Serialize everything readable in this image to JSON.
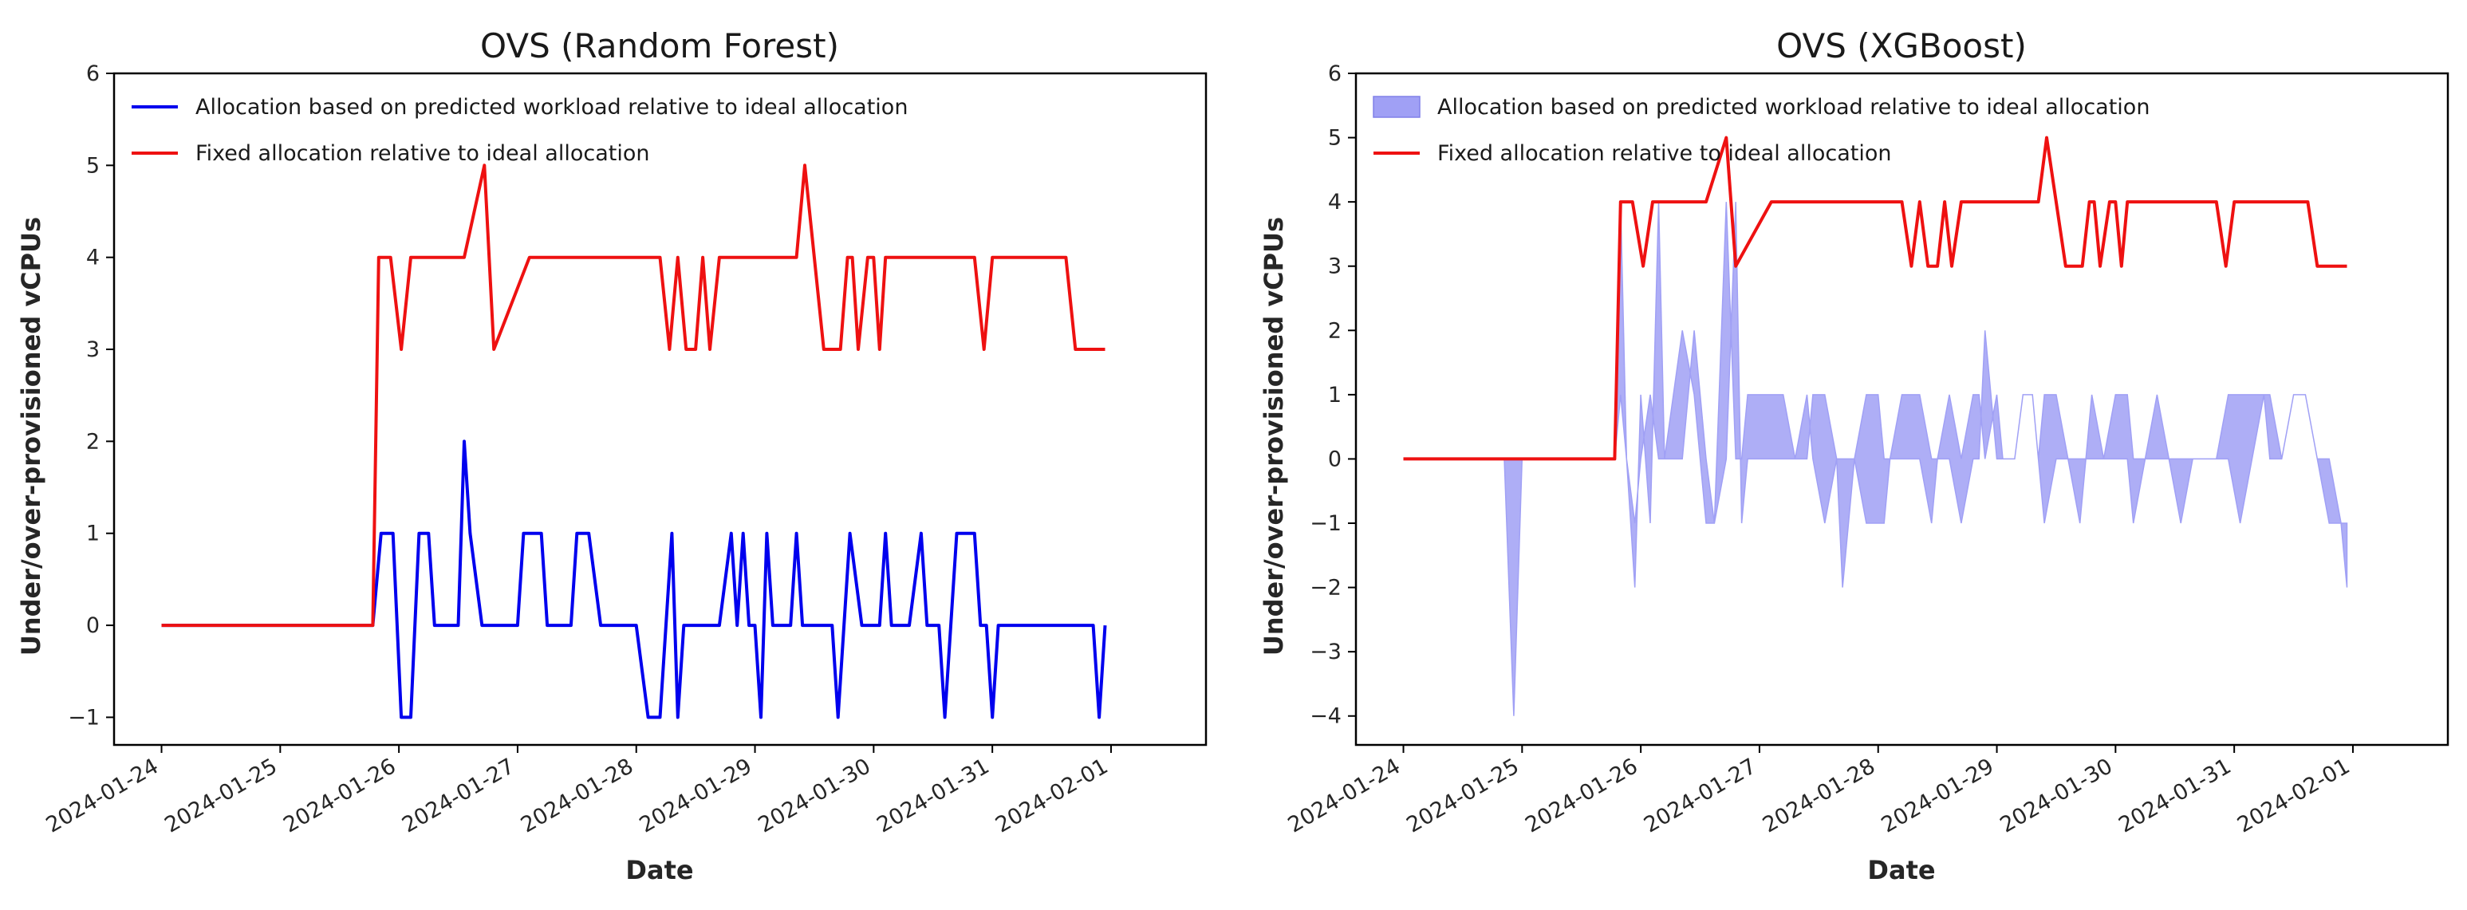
{
  "chart_data": [
    {
      "type": "line",
      "title": "OVS (Random Forest)",
      "xlabel": "Date",
      "ylabel": "Under/over-provisioned vCPUs",
      "ylim": [
        -1.3,
        6
      ],
      "yticks": [
        "−1",
        "0",
        "1",
        "2",
        "3",
        "4",
        "5",
        "6"
      ],
      "ytick_values": [
        -1,
        0,
        1,
        2,
        3,
        4,
        5,
        6
      ],
      "xlim_days": [
        -0.4,
        8.8
      ],
      "xticks": [
        "2024-01-24",
        "2024-01-25",
        "2024-01-26",
        "2024-01-27",
        "2024-01-28",
        "2024-01-29",
        "2024-01-30",
        "2024-01-31",
        "2024-02-01"
      ],
      "legend": [
        {
          "label": "Allocation based on predicted workload relative to ideal allocation",
          "style": "line",
          "color": "#0000ee"
        },
        {
          "label": "Fixed allocation relative to ideal allocation",
          "style": "line",
          "color": "#ee1111"
        }
      ],
      "series": [
        {
          "name": "Allocation based on predicted workload relative to ideal allocation",
          "color": "#0000ee",
          "x": [
            0,
            1.78,
            1.85,
            1.95,
            2.02,
            2.1,
            2.17,
            2.25,
            2.3,
            2.35,
            2.5,
            2.55,
            2.6,
            2.7,
            2.8,
            2.85,
            2.9,
            3.0,
            3.05,
            3.1,
            3.2,
            3.25,
            3.3,
            3.4,
            3.45,
            3.5,
            3.6,
            3.7,
            3.8,
            3.85,
            3.9,
            4.0,
            4.1,
            4.2,
            4.3,
            4.35,
            4.4,
            4.45,
            4.5,
            4.6,
            4.7,
            4.8,
            4.85,
            4.9,
            4.95,
            5.0,
            5.05,
            5.1,
            5.15,
            5.2,
            5.3,
            5.35,
            5.4,
            5.5,
            5.6,
            5.65,
            5.7,
            5.8,
            5.9,
            6.0,
            6.05,
            6.1,
            6.15,
            6.2,
            6.3,
            6.4,
            6.45,
            6.5,
            6.55,
            6.6,
            6.7,
            6.8,
            6.85,
            6.9,
            6.95,
            7.0,
            7.05,
            7.1,
            7.2,
            7.3,
            7.35,
            7.4,
            7.45,
            7.5,
            7.55,
            7.6,
            7.7,
            7.8,
            7.85,
            7.9,
            7.95
          ],
          "y": [
            0,
            0,
            1,
            1,
            -1,
            -1,
            1,
            1,
            0,
            0,
            0,
            2,
            1,
            0,
            0,
            0,
            0,
            0,
            1,
            1,
            1,
            0,
            0,
            0,
            0,
            1,
            1,
            0,
            0,
            0,
            0,
            0,
            -1,
            -1,
            1,
            -1,
            0,
            0,
            0,
            0,
            0,
            1,
            0,
            1,
            0,
            0,
            -1,
            1,
            0,
            0,
            0,
            1,
            0,
            0,
            0,
            0,
            -1,
            1,
            0,
            0,
            0,
            1,
            0,
            0,
            0,
            1,
            0,
            0,
            0,
            -1,
            1,
            1,
            1,
            0,
            0,
            -1,
            0,
            0,
            0,
            0,
            0,
            0,
            0,
            0,
            0,
            0,
            0,
            0,
            0,
            -1,
            0
          ]
        },
        {
          "name": "Fixed allocation relative to ideal allocation",
          "color": "#ee1111",
          "x": [
            0,
            1.78,
            1.83,
            1.93,
            2.02,
            2.1,
            2.15,
            2.4,
            2.55,
            2.72,
            2.8,
            3.1,
            4.2,
            4.28,
            4.35,
            4.42,
            4.5,
            4.56,
            4.62,
            4.7,
            4.8,
            5.02,
            5.12,
            5.2,
            5.3,
            5.35,
            5.42,
            5.58,
            5.65,
            5.72,
            5.78,
            5.82,
            5.87,
            5.95,
            6.0,
            6.05,
            6.1,
            6.2,
            6.3,
            6.4,
            6.85,
            6.93,
            7.0,
            7.1,
            7.2,
            7.28,
            7.35,
            7.42,
            7.5,
            7.62,
            7.7,
            7.8,
            7.85,
            7.95
          ],
          "y": [
            0,
            0,
            4,
            4,
            3,
            4,
            4,
            4,
            4,
            5,
            3,
            4,
            4,
            3,
            4,
            3,
            3,
            4,
            3,
            4,
            4,
            4,
            4,
            4,
            4,
            4,
            5,
            3,
            3,
            3,
            4,
            4,
            3,
            4,
            4,
            3,
            4,
            4,
            4,
            4,
            4,
            3,
            4,
            4,
            4,
            4,
            4,
            4,
            4,
            4,
            3,
            3,
            3,
            3
          ]
        }
      ]
    },
    {
      "type": "line",
      "title": "OVS (XGBoost)",
      "xlabel": "Date",
      "ylabel": "Under/over-provisioned vCPUs",
      "ylim": [
        -4.45,
        6
      ],
      "yticks": [
        "−4",
        "−3",
        "−2",
        "−1",
        "0",
        "1",
        "2",
        "3",
        "4",
        "5",
        "6"
      ],
      "ytick_values": [
        -4,
        -3,
        -2,
        -1,
        0,
        1,
        2,
        3,
        4,
        5,
        6
      ],
      "xlim_days": [
        -0.4,
        8.8
      ],
      "xticks": [
        "2024-01-24",
        "2024-01-25",
        "2024-01-26",
        "2024-01-27",
        "2024-01-28",
        "2024-01-29",
        "2024-01-30",
        "2024-01-31",
        "2024-02-01"
      ],
      "legend": [
        {
          "label": "Allocation based on predicted workload relative to ideal allocation",
          "style": "patch",
          "color": "#a0a0f5"
        },
        {
          "label": "Fixed allocation relative to ideal allocation",
          "style": "line",
          "color": "#ee1111"
        }
      ],
      "series": [
        {
          "name": "Allocation based on predicted workload relative to ideal allocation",
          "style": "band",
          "color": "#a0a0f5",
          "x": [
            0,
            0.85,
            0.93,
            1.0,
            1.78,
            1.83,
            1.88,
            1.95,
            2.0,
            2.08,
            2.15,
            2.2,
            2.35,
            2.45,
            2.55,
            2.62,
            2.72,
            2.8,
            2.85,
            2.9,
            3.0,
            3.05,
            3.2,
            3.3,
            3.4,
            3.45,
            3.55,
            3.65,
            3.7,
            3.8,
            3.9,
            4.0,
            4.05,
            4.1,
            4.2,
            4.3,
            4.35,
            4.45,
            4.5,
            4.6,
            4.7,
            4.8,
            4.85,
            4.9,
            5.0,
            5.05,
            5.15,
            5.22,
            5.3,
            5.35,
            5.4,
            5.5,
            5.6,
            5.7,
            5.8,
            5.9,
            6.0,
            6.1,
            6.15,
            6.25,
            6.35,
            6.45,
            6.55,
            6.65,
            6.75,
            6.85,
            6.95,
            7.05,
            7.15,
            7.25,
            7.3,
            7.4,
            7.5,
            7.6,
            7.7,
            7.8,
            7.9,
            7.95
          ],
          "y1": [
            0,
            0,
            0,
            0,
            0,
            1,
            0,
            -1,
            0,
            1,
            0,
            0,
            2,
            1,
            -1,
            -1,
            4,
            0,
            0,
            1,
            1,
            1,
            1,
            0,
            0,
            1,
            1,
            0,
            0,
            0,
            1,
            1,
            0,
            0,
            1,
            1,
            1,
            0,
            0,
            1,
            0,
            1,
            1,
            0,
            1,
            0,
            0,
            1,
            1,
            0,
            1,
            1,
            0,
            0,
            0,
            0,
            1,
            1,
            0,
            0,
            1,
            0,
            0,
            0,
            0,
            0,
            1,
            1,
            1,
            1,
            0,
            0,
            1,
            1,
            0,
            0,
            -1,
            -1
          ],
          "y2": [
            0,
            0,
            -4,
            0,
            0,
            4,
            0,
            -2,
            1,
            -1,
            4,
            0,
            0,
            2,
            0,
            -1,
            0,
            4,
            -1,
            0,
            0,
            0,
            0,
            0,
            1,
            0,
            -1,
            0,
            -2,
            0,
            -1,
            -1,
            -1,
            0,
            0,
            0,
            0,
            -1,
            0,
            0,
            -1,
            0,
            0,
            2,
            0,
            0,
            0,
            1,
            1,
            0,
            -1,
            0,
            0,
            -1,
            1,
            0,
            0,
            0,
            -1,
            0,
            0,
            0,
            -1,
            0,
            0,
            0,
            0,
            -1,
            0,
            1,
            1,
            0,
            1,
            1,
            0,
            -1,
            -1,
            -2
          ]
        },
        {
          "name": "Fixed allocation relative to ideal allocation",
          "color": "#ee1111",
          "x": [
            0,
            1.78,
            1.83,
            1.93,
            2.02,
            2.1,
            2.15,
            2.4,
            2.55,
            2.72,
            2.8,
            3.1,
            4.2,
            4.28,
            4.35,
            4.42,
            4.5,
            4.56,
            4.62,
            4.7,
            4.8,
            5.02,
            5.12,
            5.2,
            5.3,
            5.35,
            5.42,
            5.58,
            5.65,
            5.72,
            5.78,
            5.82,
            5.87,
            5.95,
            6.0,
            6.05,
            6.1,
            6.2,
            6.3,
            6.4,
            6.85,
            6.93,
            7.0,
            7.1,
            7.2,
            7.28,
            7.35,
            7.42,
            7.5,
            7.62,
            7.7,
            7.8,
            7.85,
            7.95
          ],
          "y": [
            0,
            0,
            4,
            4,
            3,
            4,
            4,
            4,
            4,
            5,
            3,
            4,
            4,
            3,
            4,
            3,
            3,
            4,
            3,
            4,
            4,
            4,
            4,
            4,
            4,
            4,
            5,
            3,
            3,
            3,
            4,
            4,
            3,
            4,
            4,
            3,
            4,
            4,
            4,
            4,
            4,
            3,
            4,
            4,
            4,
            4,
            4,
            4,
            4,
            4,
            3,
            3,
            3,
            3
          ]
        }
      ]
    }
  ]
}
